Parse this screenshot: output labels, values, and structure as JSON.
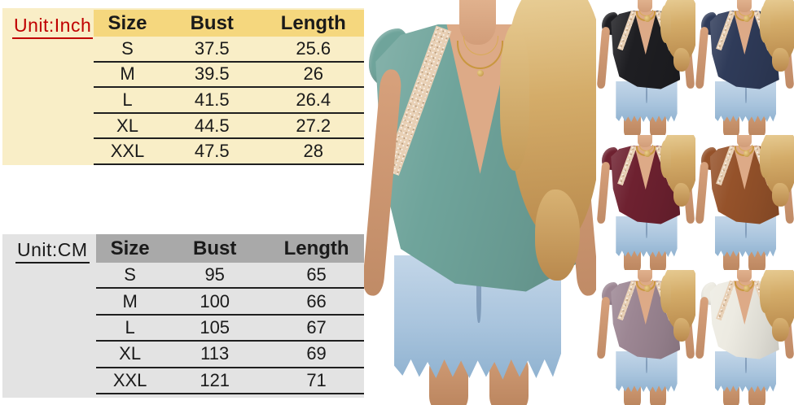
{
  "page": {
    "background": "#ffffff",
    "description": "size-chart-product-collage"
  },
  "size_chart_inch": {
    "unit_label": "Unit:Inch",
    "label_color": "#C00000",
    "panel_bg": "#F9EEC7",
    "header_bg": "#F5D77E",
    "columns": [
      "Size",
      "Bust",
      "Length"
    ],
    "rows": [
      {
        "size": "S",
        "bust": "37.5",
        "length": "25.6"
      },
      {
        "size": "M",
        "bust": "39.5",
        "length": "26"
      },
      {
        "size": "L",
        "bust": "41.5",
        "length": "26.4"
      },
      {
        "size": "XL",
        "bust": "44.5",
        "length": "27.2"
      },
      {
        "size": "XXL",
        "bust": "47.5",
        "length": "28"
      }
    ]
  },
  "size_chart_cm": {
    "unit_label": "Unit:CM",
    "label_color": "#1A1A1A",
    "panel_bg": "#E3E3E3",
    "header_bg": "#A9A9A9",
    "columns": [
      "Size",
      "Bust",
      "Length"
    ],
    "rows": [
      {
        "size": "S",
        "bust": "95",
        "length": "65"
      },
      {
        "size": "M",
        "bust": "100",
        "length": "66"
      },
      {
        "size": "L",
        "bust": "105",
        "length": "67"
      },
      {
        "size": "XL",
        "bust": "113",
        "length": "69"
      },
      {
        "size": "XXL",
        "bust": "121",
        "length": "71"
      }
    ]
  },
  "main_photo": {
    "top_color_name": "sage-teal",
    "top_hex": "#6FA49B",
    "lace_hex": "#E8D0B5",
    "shorts_hex": "#A9C4DD",
    "skin_hex": "#DDAA87"
  },
  "variants": [
    {
      "color_name": "black",
      "top_hex": "#1E1E22"
    },
    {
      "color_name": "navy-blue",
      "top_hex": "#2F3B59"
    },
    {
      "color_name": "wine-red",
      "top_hex": "#6E2130"
    },
    {
      "color_name": "caramel-brown",
      "top_hex": "#95522A"
    },
    {
      "color_name": "mauve-purple",
      "top_hex": "#9C8693"
    },
    {
      "color_name": "off-white",
      "top_hex": "#EDEBE2"
    }
  ]
}
